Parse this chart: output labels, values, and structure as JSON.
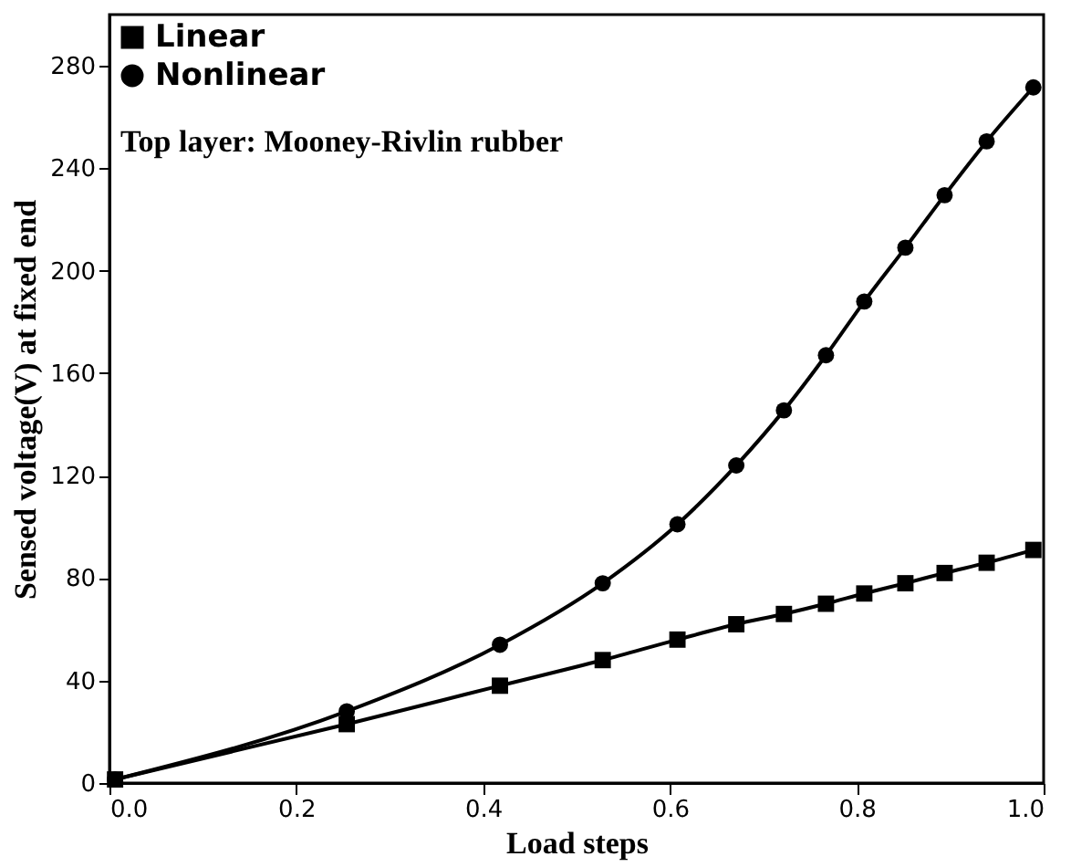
{
  "chart_data": {
    "type": "line",
    "xlabel": "Load steps",
    "ylabel": "Sensed voltage(V) at fixed end",
    "annotations": [
      "Top layer: Mooney-Rivlin rubber"
    ],
    "x": [
      0.006,
      0.254,
      0.418,
      0.528,
      0.608,
      0.671,
      0.722,
      0.767,
      0.808,
      0.852,
      0.894,
      0.939,
      0.989
    ],
    "series": [
      {
        "name": "Linear",
        "color": "#000000",
        "marker": "square",
        "values": [
          1.4,
          23,
          38,
          48,
          56,
          62,
          66,
          70,
          74,
          78,
          82,
          86,
          91
        ]
      },
      {
        "name": "Nonlinear",
        "color": "#000000",
        "marker": "circle",
        "values": [
          1.4,
          28,
          54,
          78,
          101,
          124,
          145.5,
          167,
          188,
          209,
          229.5,
          250.5,
          271.6
        ]
      }
    ],
    "xlim": [
      0,
      1
    ],
    "xticks": [
      {
        "value": 0,
        "label": "0.0"
      },
      0.2,
      0.4,
      0.6,
      0.8,
      {
        "value": 1,
        "label": "1.0"
      }
    ],
    "ylim": [
      0,
      300
    ],
    "yticks": [
      0,
      40,
      80,
      120,
      160,
      200,
      240,
      280
    ],
    "grid": false,
    "legend": "top left",
    "line_style": "solid"
  }
}
